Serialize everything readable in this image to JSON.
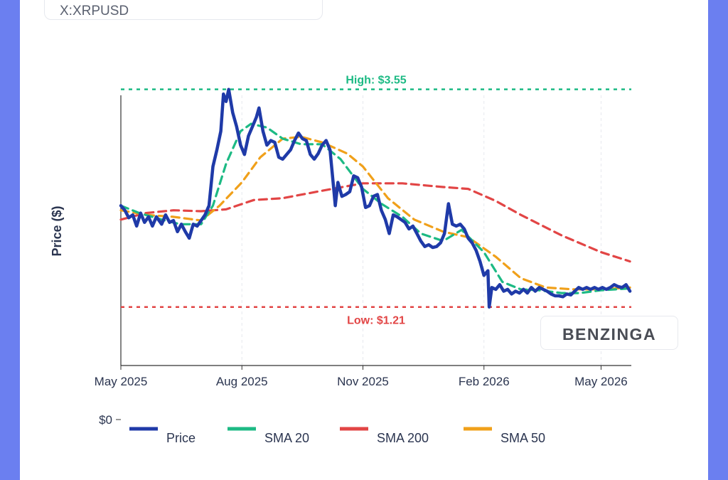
{
  "ticker": "X:XRPUSD",
  "watermark": "BENZINGA",
  "chart_data": {
    "type": "line",
    "ylabel": "Price ($)",
    "ylim": [
      0,
      3.8
    ],
    "y_ticks": [
      {
        "value": 0,
        "label": "$0"
      }
    ],
    "x_ticks": [
      "May 2025",
      "Aug 2025",
      "Nov 2025",
      "Feb 2026",
      "May 2026"
    ],
    "x_tick_dates": [
      "2025-05-01",
      "2025-08-01",
      "2025-11-01",
      "2026-02-01",
      "2026-05-01"
    ],
    "x_range": [
      "2025-05-01",
      "2026-05-24"
    ],
    "grid": true,
    "legend_position": "bottom",
    "annotations": [
      {
        "label": "High: $3.55",
        "value": 3.55,
        "color": "#1dba84"
      },
      {
        "label": "Low: $1.21",
        "value": 1.21,
        "color": "#e24545"
      }
    ],
    "series": [
      {
        "name": "Price",
        "color": "#1f3aa8",
        "dash": "solid",
        "points": [
          [
            "2025-05-01",
            2.3
          ],
          [
            "2025-05-04",
            2.25
          ],
          [
            "2025-05-07",
            2.17
          ],
          [
            "2025-05-10",
            2.2
          ],
          [
            "2025-05-13",
            2.08
          ],
          [
            "2025-05-16",
            2.22
          ],
          [
            "2025-05-19",
            2.12
          ],
          [
            "2025-05-22",
            2.18
          ],
          [
            "2025-05-25",
            2.08
          ],
          [
            "2025-05-28",
            2.18
          ],
          [
            "2025-06-01",
            2.1
          ],
          [
            "2025-06-04",
            2.2
          ],
          [
            "2025-06-07",
            2.12
          ],
          [
            "2025-06-10",
            2.14
          ],
          [
            "2025-06-13",
            2.02
          ],
          [
            "2025-06-16",
            2.1
          ],
          [
            "2025-06-19",
            2.02
          ],
          [
            "2025-06-22",
            1.95
          ],
          [
            "2025-06-25",
            2.1
          ],
          [
            "2025-06-28",
            2.08
          ],
          [
            "2025-07-01",
            2.14
          ],
          [
            "2025-07-04",
            2.2
          ],
          [
            "2025-07-07",
            2.3
          ],
          [
            "2025-07-10",
            2.72
          ],
          [
            "2025-07-13",
            2.9
          ],
          [
            "2025-07-16",
            3.1
          ],
          [
            "2025-07-18",
            3.5
          ],
          [
            "2025-07-20",
            3.42
          ],
          [
            "2025-07-22",
            3.55
          ],
          [
            "2025-07-25",
            3.3
          ],
          [
            "2025-07-28",
            3.15
          ],
          [
            "2025-07-31",
            2.95
          ],
          [
            "2025-08-03",
            2.85
          ],
          [
            "2025-08-06",
            3.05
          ],
          [
            "2025-08-09",
            3.15
          ],
          [
            "2025-08-12",
            3.25
          ],
          [
            "2025-08-14",
            3.35
          ],
          [
            "2025-08-17",
            3.1
          ],
          [
            "2025-08-20",
            2.95
          ],
          [
            "2025-08-23",
            3.0
          ],
          [
            "2025-08-26",
            2.98
          ],
          [
            "2025-08-29",
            2.82
          ],
          [
            "2025-09-01",
            2.8
          ],
          [
            "2025-09-04",
            2.85
          ],
          [
            "2025-09-07",
            2.9
          ],
          [
            "2025-09-10",
            3.0
          ],
          [
            "2025-09-13",
            3.08
          ],
          [
            "2025-09-16",
            3.02
          ],
          [
            "2025-09-19",
            3.0
          ],
          [
            "2025-09-22",
            2.85
          ],
          [
            "2025-09-25",
            2.8
          ],
          [
            "2025-09-28",
            2.86
          ],
          [
            "2025-10-01",
            2.95
          ],
          [
            "2025-10-04",
            3.0
          ],
          [
            "2025-10-07",
            2.9
          ],
          [
            "2025-10-10",
            2.45
          ],
          [
            "2025-10-11",
            2.3
          ],
          [
            "2025-10-13",
            2.55
          ],
          [
            "2025-10-16",
            2.4
          ],
          [
            "2025-10-19",
            2.42
          ],
          [
            "2025-10-22",
            2.45
          ],
          [
            "2025-10-25",
            2.62
          ],
          [
            "2025-10-28",
            2.6
          ],
          [
            "2025-10-31",
            2.5
          ],
          [
            "2025-11-03",
            2.28
          ],
          [
            "2025-11-06",
            2.3
          ],
          [
            "2025-11-09",
            2.4
          ],
          [
            "2025-11-12",
            2.42
          ],
          [
            "2025-11-15",
            2.25
          ],
          [
            "2025-11-18",
            2.15
          ],
          [
            "2025-11-21",
            2.0
          ],
          [
            "2025-11-24",
            2.2
          ],
          [
            "2025-11-27",
            2.18
          ],
          [
            "2025-11-30",
            2.15
          ],
          [
            "2025-12-03",
            2.12
          ],
          [
            "2025-12-06",
            2.05
          ],
          [
            "2025-12-09",
            2.08
          ],
          [
            "2025-12-12",
            2.0
          ],
          [
            "2025-12-15",
            1.92
          ],
          [
            "2025-12-18",
            1.86
          ],
          [
            "2025-12-21",
            1.88
          ],
          [
            "2025-12-24",
            1.85
          ],
          [
            "2025-12-27",
            1.86
          ],
          [
            "2025-12-30",
            1.9
          ],
          [
            "2026-01-02",
            2.0
          ],
          [
            "2026-01-05",
            2.32
          ],
          [
            "2026-01-08",
            2.1
          ],
          [
            "2026-01-11",
            2.08
          ],
          [
            "2026-01-14",
            2.1
          ],
          [
            "2026-01-17",
            2.05
          ],
          [
            "2026-01-20",
            1.95
          ],
          [
            "2026-01-23",
            1.9
          ],
          [
            "2026-01-26",
            1.82
          ],
          [
            "2026-01-29",
            1.7
          ],
          [
            "2026-02-01",
            1.55
          ],
          [
            "2026-02-04",
            1.6
          ],
          [
            "2026-02-05",
            1.21
          ],
          [
            "2026-02-07",
            1.42
          ],
          [
            "2026-02-10",
            1.4
          ],
          [
            "2026-02-13",
            1.45
          ],
          [
            "2026-02-16",
            1.38
          ],
          [
            "2026-02-19",
            1.4
          ],
          [
            "2026-02-22",
            1.35
          ],
          [
            "2026-02-25",
            1.38
          ],
          [
            "2026-02-28",
            1.36
          ],
          [
            "2026-03-03",
            1.4
          ],
          [
            "2026-03-06",
            1.36
          ],
          [
            "2026-03-09",
            1.42
          ],
          [
            "2026-03-12",
            1.38
          ],
          [
            "2026-03-15",
            1.42
          ],
          [
            "2026-03-18",
            1.4
          ],
          [
            "2026-03-21",
            1.38
          ],
          [
            "2026-03-24",
            1.35
          ],
          [
            "2026-03-27",
            1.33
          ],
          [
            "2026-03-30",
            1.33
          ],
          [
            "2026-04-02",
            1.32
          ],
          [
            "2026-04-05",
            1.35
          ],
          [
            "2026-04-08",
            1.34
          ],
          [
            "2026-04-11",
            1.38
          ],
          [
            "2026-04-14",
            1.42
          ],
          [
            "2026-04-17",
            1.4
          ],
          [
            "2026-04-20",
            1.42
          ],
          [
            "2026-04-23",
            1.4
          ],
          [
            "2026-04-26",
            1.42
          ],
          [
            "2026-04-29",
            1.4
          ],
          [
            "2026-05-02",
            1.42
          ],
          [
            "2026-05-05",
            1.4
          ],
          [
            "2026-05-08",
            1.42
          ],
          [
            "2026-05-11",
            1.45
          ],
          [
            "2026-05-14",
            1.43
          ],
          [
            "2026-05-17",
            1.42
          ],
          [
            "2026-05-20",
            1.45
          ],
          [
            "2026-05-23",
            1.38
          ]
        ]
      },
      {
        "name": "SMA 20",
        "color": "#1dba84",
        "dash": "dashed",
        "points": [
          [
            "2025-05-01",
            2.3
          ],
          [
            "2025-05-15",
            2.22
          ],
          [
            "2025-06-01",
            2.15
          ],
          [
            "2025-06-15",
            2.1
          ],
          [
            "2025-07-01",
            2.1
          ],
          [
            "2025-07-10",
            2.3
          ],
          [
            "2025-07-20",
            2.75
          ],
          [
            "2025-07-31",
            3.1
          ],
          [
            "2025-08-08",
            3.18
          ],
          [
            "2025-08-20",
            3.14
          ],
          [
            "2025-09-01",
            3.02
          ],
          [
            "2025-09-15",
            2.96
          ],
          [
            "2025-10-01",
            2.96
          ],
          [
            "2025-10-15",
            2.8
          ],
          [
            "2025-11-01",
            2.48
          ],
          [
            "2025-11-15",
            2.32
          ],
          [
            "2025-12-01",
            2.18
          ],
          [
            "2025-12-15",
            2.0
          ],
          [
            "2026-01-01",
            1.92
          ],
          [
            "2026-01-15",
            2.04
          ],
          [
            "2026-02-01",
            1.8
          ],
          [
            "2026-02-15",
            1.48
          ],
          [
            "2026-03-01",
            1.4
          ],
          [
            "2026-03-15",
            1.39
          ],
          [
            "2026-04-01",
            1.36
          ],
          [
            "2026-04-15",
            1.36
          ],
          [
            "2026-05-01",
            1.39
          ],
          [
            "2026-05-23",
            1.41
          ]
        ]
      },
      {
        "name": "SMA 200",
        "color": "#e24545",
        "dash": "dashed",
        "points": [
          [
            "2025-05-01",
            2.15
          ],
          [
            "2025-05-20",
            2.22
          ],
          [
            "2025-06-10",
            2.25
          ],
          [
            "2025-07-01",
            2.24
          ],
          [
            "2025-07-20",
            2.26
          ],
          [
            "2025-08-10",
            2.36
          ],
          [
            "2025-09-01",
            2.38
          ],
          [
            "2025-10-01",
            2.46
          ],
          [
            "2025-11-01",
            2.54
          ],
          [
            "2025-12-01",
            2.54
          ],
          [
            "2026-01-01",
            2.5
          ],
          [
            "2026-01-20",
            2.48
          ],
          [
            "2026-02-10",
            2.35
          ],
          [
            "2026-03-01",
            2.2
          ],
          [
            "2026-04-01",
            1.98
          ],
          [
            "2026-05-01",
            1.8
          ],
          [
            "2026-05-23",
            1.7
          ]
        ]
      },
      {
        "name": "SMA 50",
        "color": "#f0a01a",
        "dash": "dashed",
        "points": [
          [
            "2025-05-01",
            2.25
          ],
          [
            "2025-05-20",
            2.2
          ],
          [
            "2025-06-10",
            2.18
          ],
          [
            "2025-07-01",
            2.14
          ],
          [
            "2025-07-15",
            2.3
          ],
          [
            "2025-08-01",
            2.55
          ],
          [
            "2025-08-15",
            2.82
          ],
          [
            "2025-09-01",
            3.02
          ],
          [
            "2025-09-15",
            3.04
          ],
          [
            "2025-10-01",
            2.98
          ],
          [
            "2025-10-20",
            2.86
          ],
          [
            "2025-11-01",
            2.72
          ],
          [
            "2025-11-20",
            2.38
          ],
          [
            "2025-12-10",
            2.15
          ],
          [
            "2026-01-01",
            2.02
          ],
          [
            "2026-01-20",
            1.96
          ],
          [
            "2026-02-10",
            1.75
          ],
          [
            "2026-03-01",
            1.52
          ],
          [
            "2026-03-20",
            1.42
          ],
          [
            "2026-04-10",
            1.4
          ],
          [
            "2026-05-01",
            1.4
          ],
          [
            "2026-05-23",
            1.42
          ]
        ]
      }
    ]
  }
}
